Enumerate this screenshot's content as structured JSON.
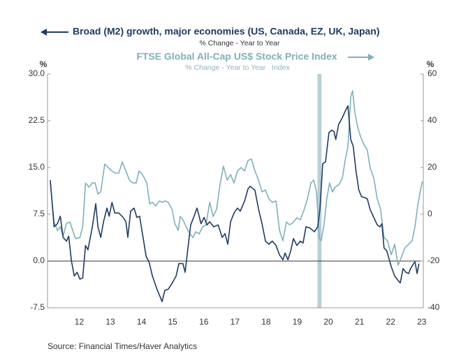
{
  "chart_data": {
    "type": "line",
    "series": [
      {
        "name": "Broad (M2) growth, major economies (US, Canada, EZ, UK, Japan)",
        "unit": "% Change - Year to Year",
        "color": "#1f3b63",
        "axis": "y",
        "x": [
          2011.57,
          2011.69,
          2011.8,
          2011.89,
          2011.98,
          2012.09,
          2012.16,
          2012.25,
          2012.34,
          2012.43,
          2012.52,
          2012.61,
          2012.7,
          2012.78,
          2012.92,
          2013.03,
          2013.1,
          2013.19,
          2013.28,
          2013.39,
          2013.46,
          2013.55,
          2013.64,
          2013.77,
          2013.91,
          2014.0,
          2014.06,
          2014.15,
          2014.26,
          2014.35,
          2014.44,
          2014.53,
          2014.65,
          2014.74,
          2014.85,
          2014.98,
          2015.16,
          2015.25,
          2015.36,
          2015.49,
          2015.61,
          2015.7,
          2015.83,
          2015.9,
          2016.01,
          2016.08,
          2016.19,
          2016.28,
          2016.35,
          2016.41,
          2016.51,
          2016.6,
          2016.69,
          2016.82,
          2016.96,
          2017.09,
          2017.18,
          2017.27,
          2017.36,
          2017.47,
          2017.58,
          2017.67,
          2017.81,
          2017.92,
          2017.99,
          2018.08,
          2018.14,
          2018.26,
          2018.37,
          2018.48,
          2018.59,
          2018.7,
          2018.82,
          2018.93,
          2019.04,
          2019.11,
          2019.2,
          2019.29,
          2019.38,
          2019.49,
          2019.6,
          2019.69,
          2019.78,
          2019.91,
          2020.05,
          2020.16,
          2020.23,
          2020.32,
          2020.41,
          2020.52,
          2020.61,
          2020.68,
          2020.74,
          2020.83,
          2020.95,
          2021.04,
          2021.13,
          2021.22,
          2021.3,
          2021.39,
          2021.48,
          2021.57,
          2021.66,
          2021.75,
          2021.84,
          2021.96,
          2022.07,
          2022.16,
          2022.22,
          2022.29,
          2022.38,
          2022.52,
          2022.63,
          2022.74,
          2022.81,
          2022.9,
          2022.99,
          2023.08,
          2023.14,
          2023.24,
          2023.28,
          2023.35,
          2023.41
        ],
        "values": [
          13.0,
          5.5,
          6.0,
          7.2,
          3.8,
          3.2,
          4.0,
          0.0,
          -2.4,
          -1.8,
          -2.9,
          -2.7,
          2.5,
          1.8,
          5.5,
          9.2,
          5.5,
          3.8,
          6.3,
          8.5,
          7.2,
          9.4,
          7.7,
          7.7,
          7.0,
          6.3,
          3.8,
          8.0,
          8.5,
          7.0,
          7.2,
          4.4,
          0.7,
          -0.1,
          -2.4,
          -4.3,
          -6.5,
          -4.7,
          -4.5,
          -3.5,
          -2.4,
          -0.4,
          -0.4,
          -1.8,
          2.9,
          5.8,
          7.2,
          8.5,
          7.2,
          6.0,
          7.0,
          5.8,
          6.3,
          5.5,
          5.8,
          3.8,
          4.4,
          2.7,
          6.3,
          7.7,
          8.5,
          8.0,
          9.6,
          11.6,
          12.0,
          11.6,
          11.4,
          8.3,
          6.0,
          3.2,
          2.7,
          3.2,
          2.5,
          1.0,
          0.2,
          1.3,
          0.2,
          1.6,
          3.6,
          2.5,
          3.2,
          2.9,
          5.5,
          5.3,
          4.7,
          5.5,
          8.3,
          15.6,
          15.9,
          20.6,
          21.0,
          20.8,
          19.5,
          21.9,
          23.0,
          24.0,
          24.9,
          19.5,
          18.4,
          14.4,
          11.4,
          10.3,
          10.2,
          10.0,
          8.3,
          7.0,
          5.8,
          5.5,
          6.0,
          2.1,
          1.6,
          -0.9,
          -2.4,
          -3.1,
          -3.5,
          -1.2,
          -1.8,
          -2.0,
          -1.2,
          -0.4,
          -0.1,
          -2.0,
          -0.4
        ]
      },
      {
        "name": "FTSE Global All-Cap US$ Stock Price Index",
        "unit": "% Change - Year to Year   Index",
        "color": "#7fb0b9",
        "axis": "y2",
        "x": [
          2011.57,
          2011.69,
          2011.8,
          2011.89,
          2011.98,
          2012.09,
          2012.2,
          2012.29,
          2012.38,
          2012.52,
          2012.61,
          2012.7,
          2012.81,
          2012.92,
          2013.01,
          2013.1,
          2013.19,
          2013.32,
          2013.43,
          2013.55,
          2013.66,
          2013.77,
          2013.88,
          2014.0,
          2014.11,
          2014.22,
          2014.33,
          2014.42,
          2014.53,
          2014.67,
          2014.76,
          2014.85,
          2014.96,
          2015.07,
          2015.16,
          2015.25,
          2015.36,
          2015.48,
          2015.57,
          2015.68,
          2015.74,
          2015.83,
          2015.97,
          2016.06,
          2016.15,
          2016.24,
          2016.35,
          2016.46,
          2016.57,
          2016.69,
          2016.8,
          2016.91,
          2017.02,
          2017.13,
          2017.25,
          2017.36,
          2017.47,
          2017.58,
          2017.7,
          2017.81,
          2017.92,
          2018.03,
          2018.14,
          2018.26,
          2018.37,
          2018.48,
          2018.59,
          2018.7,
          2018.82,
          2018.93,
          2019.04,
          2019.15,
          2019.26,
          2019.38,
          2019.49,
          2019.6,
          2019.71,
          2019.83,
          2019.94,
          2020.03,
          2020.12,
          2020.21,
          2020.27,
          2020.36,
          2020.45,
          2020.54,
          2020.63,
          2020.72,
          2020.83,
          2020.95,
          2021.04,
          2021.13,
          2021.22,
          2021.28,
          2021.35,
          2021.44,
          2021.53,
          2021.62,
          2021.75,
          2021.84,
          2021.96,
          2022.07,
          2022.18,
          2022.29,
          2022.4,
          2022.52,
          2022.63,
          2022.74,
          2022.85,
          2022.96,
          2023.08,
          2023.19,
          2023.28,
          2023.37,
          2023.46,
          2023.52
        ],
        "values": [
          13.4,
          -3.3,
          -6.9,
          -5.4,
          -9.3,
          -3.9,
          -3.3,
          -6.9,
          -10.4,
          -9.9,
          -5.4,
          13.4,
          11.6,
          13.4,
          13.4,
          8.7,
          9.6,
          21.5,
          20.0,
          18.5,
          17.6,
          17.6,
          22.4,
          18.5,
          14.6,
          13.4,
          13.4,
          18.5,
          17.0,
          13.4,
          4.5,
          5.1,
          3.6,
          5.7,
          5.1,
          5.7,
          5.1,
          2.1,
          -3.9,
          -6.9,
          -0.9,
          -2.4,
          -6.3,
          -8.4,
          -9.9,
          -7.5,
          -8.4,
          -5.4,
          -4.5,
          5.1,
          -0.9,
          2.1,
          12.5,
          20.6,
          14.6,
          17.0,
          13.4,
          18.5,
          20.0,
          18.5,
          23.0,
          23.6,
          18.5,
          14.6,
          9.6,
          10.4,
          6.6,
          5.1,
          5.7,
          -6.9,
          -11.3,
          -3.3,
          -4.5,
          -3.3,
          -1.5,
          -2.4,
          1.5,
          6.6,
          13.4,
          14.6,
          9.6,
          -10.4,
          -11.3,
          -4.5,
          6.6,
          13.4,
          9.6,
          11.6,
          12.5,
          15.5,
          23.0,
          29.0,
          50.4,
          52.8,
          43.9,
          37.3,
          33.4,
          30.4,
          27.5,
          20.0,
          15.5,
          6.6,
          2.1,
          -9.9,
          -11.3,
          -17.3,
          -12.8,
          -21.8,
          -18.2,
          -14.3,
          -12.8,
          -11.3,
          -5.4,
          3.6,
          10.4,
          14.0
        ]
      }
    ],
    "y_label": "%",
    "y2_label": "%",
    "xlim": [
      2011.48,
      2023.55
    ],
    "xticks": [
      {
        "value": 2012.5,
        "label": "12"
      },
      {
        "value": 2013.5,
        "label": "13"
      },
      {
        "value": 2014.5,
        "label": "14"
      },
      {
        "value": 2015.5,
        "label": "15"
      },
      {
        "value": 2016.5,
        "label": "16"
      },
      {
        "value": 2017.5,
        "label": "17"
      },
      {
        "value": 2018.5,
        "label": "18"
      },
      {
        "value": 2019.5,
        "label": "19"
      },
      {
        "value": 2020.5,
        "label": "20"
      },
      {
        "value": 2021.5,
        "label": "21"
      },
      {
        "value": 2022.5,
        "label": "22"
      },
      {
        "value": 2023.5,
        "label": "23"
      }
    ],
    "ylim": [
      -7.5,
      30
    ],
    "yticks": [
      {
        "value": 30,
        "label": "30.0"
      },
      22.5,
      {
        "value": 15,
        "label": "15.0"
      },
      7.5,
      {
        "value": 0,
        "label": "0.0"
      },
      -7.5
    ],
    "y2lim": [
      -40,
      60
    ],
    "y2ticks": [
      60,
      40,
      20,
      0,
      -20,
      -40
    ],
    "zero_line": true,
    "shaded_band": [
      2020.15,
      2020.28
    ],
    "band_color": "#b9cfd8",
    "source": "Source:  Financial Times/Haver Analytics"
  }
}
